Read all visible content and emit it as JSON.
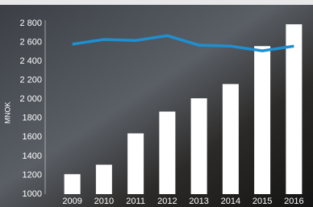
{
  "chart_data": {
    "type": "bar-line",
    "y_label": "MNOK",
    "categories": [
      "2009",
      "2010",
      "2011",
      "2012",
      "2013",
      "2014",
      "2015",
      "2016"
    ],
    "series": [
      {
        "type": "bar",
        "color": "#ffffff",
        "values": [
          1210,
          1310,
          1640,
          1870,
          2010,
          2160,
          2560,
          2790
        ]
      },
      {
        "type": "line",
        "color": "#1e8fd0",
        "values": [
          2580,
          2630,
          2620,
          2670,
          2570,
          2560,
          2510,
          2560
        ]
      }
    ],
    "ylim": [
      1000,
      2800
    ],
    "yticks": [
      1000,
      1200,
      1400,
      1600,
      1800,
      {
        "value": 2000,
        "label": "2 000"
      },
      {
        "value": 2200,
        "label": "2 200"
      },
      {
        "value": 2400,
        "label": "2 400"
      },
      {
        "value": 2600,
        "label": "2 600"
      },
      {
        "value": 2800,
        "label": "2 800"
      }
    ]
  }
}
